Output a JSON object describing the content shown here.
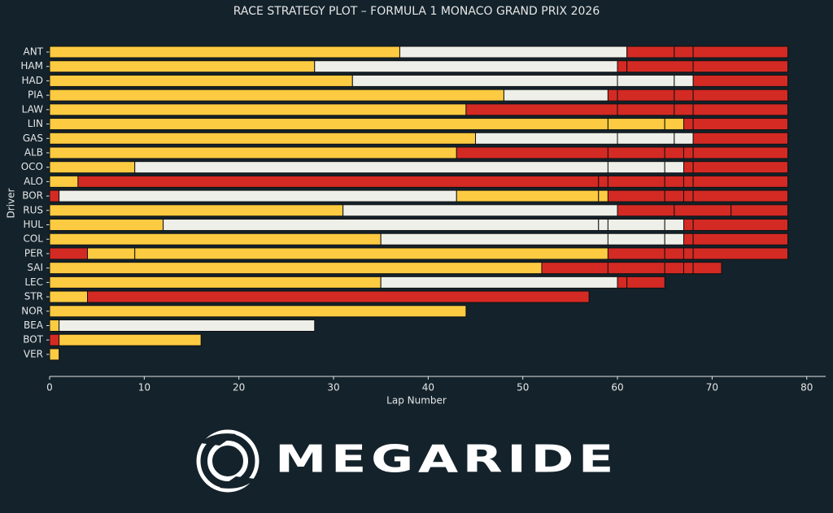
{
  "chart_data": {
    "type": "bar",
    "orientation": "horizontal",
    "stacked": true,
    "title": "RACE STRATEGY PLOT – FORMULA 1 MONACO GRAND PRIX 2026",
    "x_label": "Lap Number",
    "y_label": "Driver",
    "xlim": [
      0,
      82
    ],
    "xticks": [
      0,
      10,
      20,
      30,
      40,
      50,
      60,
      70,
      80
    ],
    "categories": [
      "ANT",
      "HAM",
      "HAD",
      "PIA",
      "LAW",
      "LIN",
      "GAS",
      "ALB",
      "OCO",
      "ALO",
      "BOR",
      "RUS",
      "HUL",
      "COL",
      "PER",
      "SAI",
      "LEC",
      "STR",
      "NOR",
      "BEA",
      "BOT",
      "VER"
    ],
    "stints": [
      [
        {
          "color": "#fccb42",
          "value": 37
        },
        {
          "color": "#efefea",
          "value": 24
        },
        {
          "color": "#d42a24",
          "value": 5
        },
        {
          "color": "#d42a24",
          "value": 2
        },
        {
          "color": "#d42a24",
          "value": 10
        }
      ],
      [
        {
          "color": "#fccb42",
          "value": 28
        },
        {
          "color": "#efefea",
          "value": 32
        },
        {
          "color": "#d42a24",
          "value": 1
        },
        {
          "color": "#d42a24",
          "value": 7
        },
        {
          "color": "#d42a24",
          "value": 10
        }
      ],
      [
        {
          "color": "#fccb42",
          "value": 32
        },
        {
          "color": "#efefea",
          "value": 28
        },
        {
          "color": "#efefea",
          "value": 6
        },
        {
          "color": "#efefea",
          "value": 2
        },
        {
          "color": "#d42a24",
          "value": 10
        }
      ],
      [
        {
          "color": "#fccb42",
          "value": 48
        },
        {
          "color": "#efefea",
          "value": 11
        },
        {
          "color": "#d42a24",
          "value": 1
        },
        {
          "color": "#d42a24",
          "value": 6
        },
        {
          "color": "#d42a24",
          "value": 2
        },
        {
          "color": "#d42a24",
          "value": 10
        }
      ],
      [
        {
          "color": "#fccb42",
          "value": 44
        },
        {
          "color": "#d42a24",
          "value": 16
        },
        {
          "color": "#d42a24",
          "value": 6
        },
        {
          "color": "#d42a24",
          "value": 2
        },
        {
          "color": "#d42a24",
          "value": 10
        }
      ],
      [
        {
          "color": "#fccb42",
          "value": 59
        },
        {
          "color": "#fccb42",
          "value": 6
        },
        {
          "color": "#fccb42",
          "value": 2
        },
        {
          "color": "#d42a24",
          "value": 1
        },
        {
          "color": "#d42a24",
          "value": 10
        }
      ],
      [
        {
          "color": "#fccb42",
          "value": 45
        },
        {
          "color": "#efefea",
          "value": 15
        },
        {
          "color": "#efefea",
          "value": 6
        },
        {
          "color": "#efefea",
          "value": 2
        },
        {
          "color": "#d42a24",
          "value": 10
        }
      ],
      [
        {
          "color": "#fccb42",
          "value": 43
        },
        {
          "color": "#d42a24",
          "value": 16
        },
        {
          "color": "#d42a24",
          "value": 6
        },
        {
          "color": "#d42a24",
          "value": 2
        },
        {
          "color": "#d42a24",
          "value": 1
        },
        {
          "color": "#d42a24",
          "value": 10
        }
      ],
      [
        {
          "color": "#fccb42",
          "value": 9
        },
        {
          "color": "#efefea",
          "value": 50
        },
        {
          "color": "#efefea",
          "value": 6
        },
        {
          "color": "#efefea",
          "value": 2
        },
        {
          "color": "#d42a24",
          "value": 1
        },
        {
          "color": "#d42a24",
          "value": 10
        }
      ],
      [
        {
          "color": "#fccb42",
          "value": 3
        },
        {
          "color": "#d42a24",
          "value": 55
        },
        {
          "color": "#d42a24",
          "value": 1
        },
        {
          "color": "#d42a24",
          "value": 6
        },
        {
          "color": "#d42a24",
          "value": 2
        },
        {
          "color": "#d42a24",
          "value": 1
        },
        {
          "color": "#d42a24",
          "value": 10
        }
      ],
      [
        {
          "color": "#d42a24",
          "value": 1
        },
        {
          "color": "#efefea",
          "value": 42
        },
        {
          "color": "#fccb42",
          "value": 15
        },
        {
          "color": "#fccb42",
          "value": 1
        },
        {
          "color": "#d42a24",
          "value": 6
        },
        {
          "color": "#d42a24",
          "value": 2
        },
        {
          "color": "#d42a24",
          "value": 1
        },
        {
          "color": "#d42a24",
          "value": 10
        }
      ],
      [
        {
          "color": "#fccb42",
          "value": 31
        },
        {
          "color": "#efefea",
          "value": 29
        },
        {
          "color": "#d42a24",
          "value": 6
        },
        {
          "color": "#d42a24",
          "value": 6
        },
        {
          "color": "#d42a24",
          "value": 6
        }
      ],
      [
        {
          "color": "#fccb42",
          "value": 12
        },
        {
          "color": "#efefea",
          "value": 46
        },
        {
          "color": "#efefea",
          "value": 1
        },
        {
          "color": "#efefea",
          "value": 6
        },
        {
          "color": "#efefea",
          "value": 2
        },
        {
          "color": "#d42a24",
          "value": 1
        },
        {
          "color": "#d42a24",
          "value": 10
        }
      ],
      [
        {
          "color": "#fccb42",
          "value": 35
        },
        {
          "color": "#efefea",
          "value": 24
        },
        {
          "color": "#efefea",
          "value": 6
        },
        {
          "color": "#efefea",
          "value": 2
        },
        {
          "color": "#d42a24",
          "value": 1
        },
        {
          "color": "#d42a24",
          "value": 10
        }
      ],
      [
        {
          "color": "#d42a24",
          "value": 4
        },
        {
          "color": "#fccb42",
          "value": 5
        },
        {
          "color": "#fccb42",
          "value": 50
        },
        {
          "color": "#d42a24",
          "value": 6
        },
        {
          "color": "#d42a24",
          "value": 2
        },
        {
          "color": "#d42a24",
          "value": 1
        },
        {
          "color": "#d42a24",
          "value": 10
        }
      ],
      [
        {
          "color": "#fccb42",
          "value": 52
        },
        {
          "color": "#d42a24",
          "value": 7
        },
        {
          "color": "#d42a24",
          "value": 6
        },
        {
          "color": "#d42a24",
          "value": 2
        },
        {
          "color": "#d42a24",
          "value": 1
        },
        {
          "color": "#d42a24",
          "value": 3
        }
      ],
      [
        {
          "color": "#fccb42",
          "value": 35
        },
        {
          "color": "#efefea",
          "value": 25
        },
        {
          "color": "#d42a24",
          "value": 1
        },
        {
          "color": "#d42a24",
          "value": 4
        }
      ],
      [
        {
          "color": "#fccb42",
          "value": 4
        },
        {
          "color": "#d42a24",
          "value": 53
        }
      ],
      [
        {
          "color": "#fccb42",
          "value": 44
        }
      ],
      [
        {
          "color": "#fccb42",
          "value": 1
        },
        {
          "color": "#efefea",
          "value": 27
        }
      ],
      [
        {
          "color": "#d42a24",
          "value": 1
        },
        {
          "color": "#fccb42",
          "value": 15
        }
      ],
      [
        {
          "color": "#fccb42",
          "value": 1
        }
      ]
    ]
  },
  "logo": {
    "text": "MEGARIDE"
  }
}
